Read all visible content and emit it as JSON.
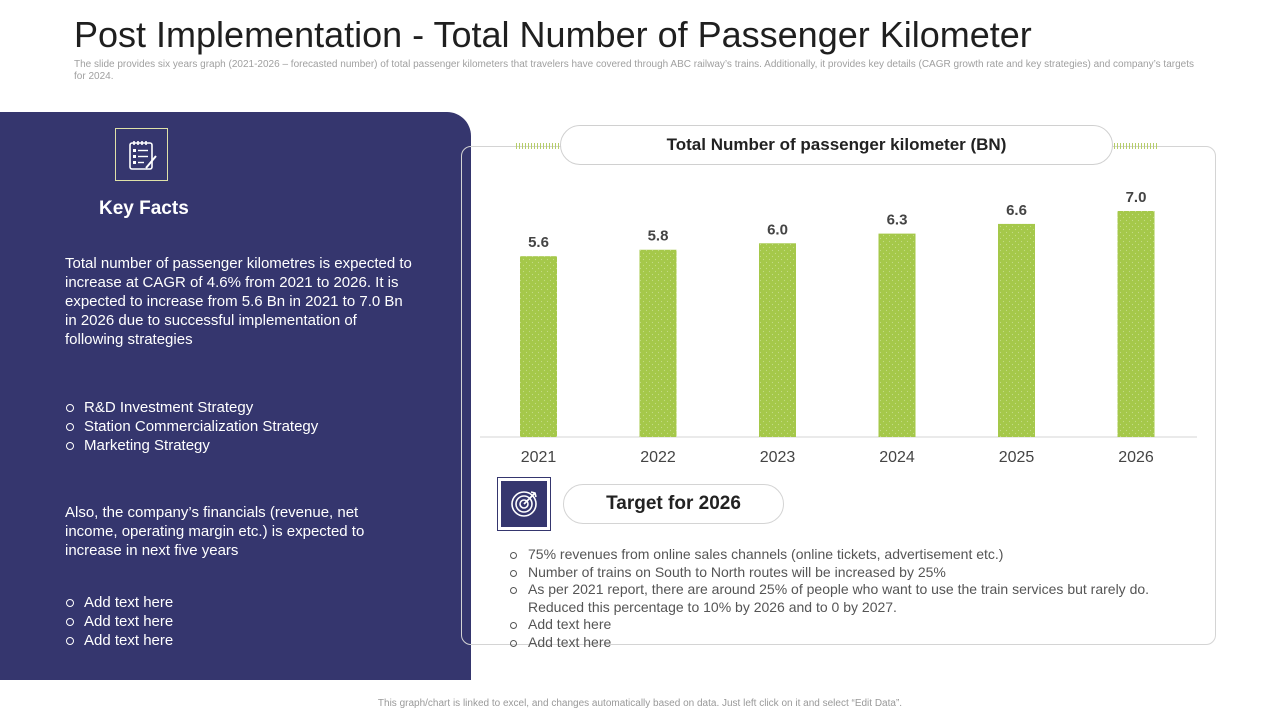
{
  "page": {
    "title": "Post Implementation - Total Number of Passenger Kilometer",
    "subtitle": "The slide provides six years graph (2021-2026 – forecasted number) of total passenger kilometers that travelers have covered through ABC railway’s trains. Additionally, it provides key details (CAGR growth rate and key strategies) and company’s targets for 2024.",
    "footer": "This graph/chart is linked to excel, and changes automatically based on data. Just left click on it and select “Edit Data”."
  },
  "key_facts": {
    "icon": "checklist-icon",
    "title": "Key Facts",
    "paragraph1": "Total number of passenger kilometres is expected to increase at CAGR of 4.6% from 2021 to 2026. It is expected to increase from 5.6 Bn in 2021 to 7.0 Bn in 2026 due to successful implementation of following strategies",
    "strategies": [
      "R&D Investment  Strategy",
      "Station Commercialization Strategy",
      "Marketing Strategy"
    ],
    "paragraph2": "Also, the company’s financials (revenue, net income, operating margin etc.) is expected to increase in next five years",
    "add_items": [
      "Add text here",
      "Add text here",
      "Add text here"
    ]
  },
  "target": {
    "icon": "target-icon",
    "title": "Target for 2026",
    "items": [
      "75% revenues from online sales channels (online tickets, advertisement etc.)",
      "Number of trains on South to North routes will be increased by 25%",
      "As per 2021 report, there are around 25% of people who want to use the train services but rarely do. Reduced this percentage to 10% by 2026 and to 0 by 2027.",
      "Add text here",
      "Add text here"
    ]
  },
  "colors": {
    "panel": "#35366e",
    "bar": "#a5c84a",
    "accent_line": "#b6cd6a"
  },
  "chart_data": {
    "type": "bar",
    "title": "Total Number of passenger kilometer (BN)",
    "categories": [
      "2021",
      "2022",
      "2023",
      "2024",
      "2025",
      "2026"
    ],
    "values": [
      5.6,
      5.8,
      6.0,
      6.3,
      6.6,
      7.0
    ],
    "data_labels": [
      "5.6",
      "5.8",
      "6.0",
      "6.3",
      "6.6",
      "7.0"
    ],
    "xlabel": "",
    "ylabel": "",
    "ylim": [
      0,
      7.0
    ],
    "grid": false,
    "legend": "none"
  }
}
